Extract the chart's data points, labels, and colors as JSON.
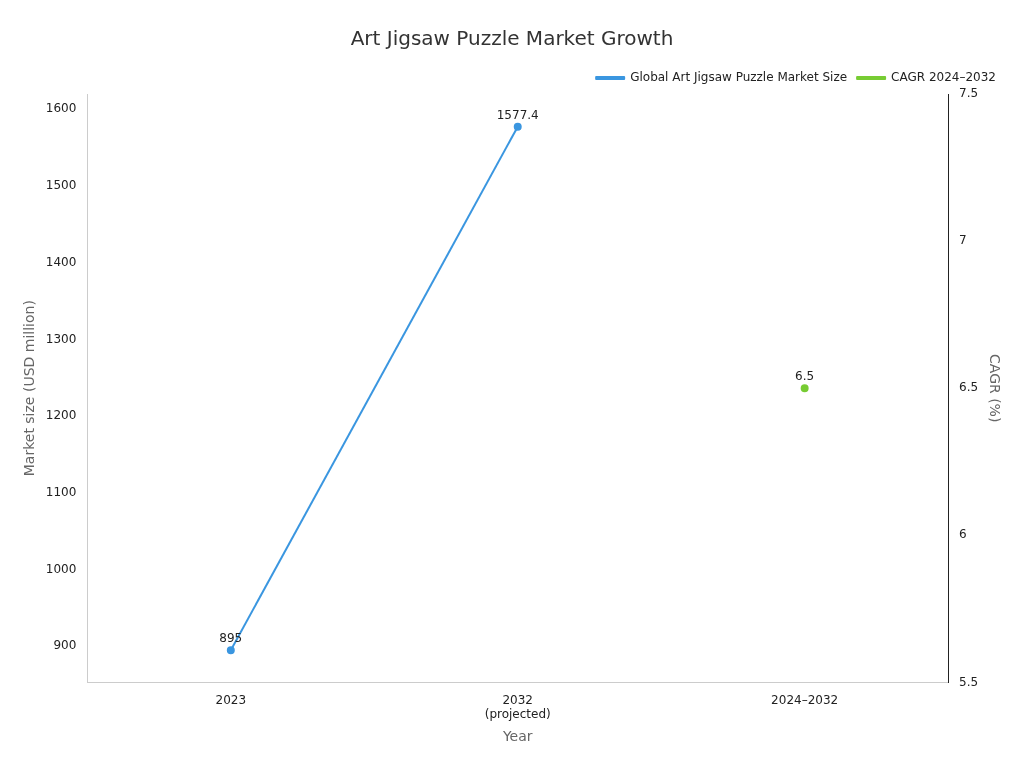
{
  "chart_data": {
    "type": "line",
    "title": "Art Jigsaw Puzzle Market Growth",
    "xlabel": "Year",
    "ylabel": "Market size (USD million)",
    "y2label": "CAGR (%)",
    "categories": [
      "2023",
      "2032\n(projected)",
      "2024–2032"
    ],
    "series": [
      {
        "name": "Global Art Jigsaw Puzzle Market Size",
        "color": "#3a96e0",
        "values": [
          895,
          1577.4,
          null
        ]
      },
      {
        "name": "CAGR 2024–2032",
        "color": "#77cc33",
        "values": [
          null,
          null,
          6.5
        ],
        "axis": "y2"
      }
    ],
    "ylim": [
      853,
      1620
    ],
    "yticks": [
      900,
      1000,
      1100,
      1200,
      1300,
      1400,
      1500,
      1600
    ],
    "y2lim": [
      5.5,
      7.5
    ],
    "y2ticks": [
      5.5,
      6,
      6.5,
      7,
      7.5
    ],
    "grid": false,
    "legend": "top right",
    "marker": "circle",
    "line_style": "solid",
    "data_labels": true
  }
}
